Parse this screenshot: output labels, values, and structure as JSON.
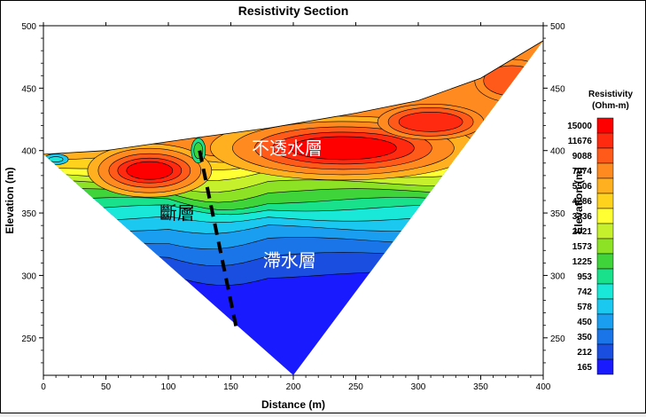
{
  "chart_data": {
    "type": "heatmap",
    "title": "Resistivity Section",
    "xlabel": "Distance (m)",
    "ylabel": "Elevation (m)",
    "ylabel_right": "Elevation (m)",
    "xlim": [
      0,
      400
    ],
    "ylim": [
      220,
      500
    ],
    "x_ticks": [
      0,
      50,
      100,
      150,
      200,
      250,
      300,
      350,
      400
    ],
    "y_ticks": [
      250,
      300,
      350,
      400,
      450,
      500
    ],
    "section_outline": [
      [
        0,
        397
      ],
      [
        50,
        400
      ],
      [
        120,
        410
      ],
      [
        180,
        418
      ],
      [
        250,
        430
      ],
      [
        300,
        440
      ],
      [
        350,
        458
      ],
      [
        400,
        488
      ],
      [
        200,
        220
      ]
    ],
    "colorbar": {
      "title_line1": "Resistivity",
      "title_line2": "(Ohm-m)",
      "levels": [
        "15000",
        "11676",
        "9088",
        "7074",
        "5506",
        "4286",
        "3336",
        "2021",
        "1573",
        "1225",
        "953",
        "742",
        "578",
        "450",
        "350",
        "212",
        "165"
      ],
      "colors": [
        "#ff0000",
        "#ff2a10",
        "#ff5a1a",
        "#ff8a20",
        "#ffb020",
        "#ffd21e",
        "#ffff33",
        "#c6ef2c",
        "#8ee226",
        "#3fd43a",
        "#19e08a",
        "#19e8d8",
        "#1ac8f0",
        "#1a9ef0",
        "#1a76e8",
        "#1a4ee0",
        "#1a1aff"
      ]
    },
    "annotations": [
      {
        "text": "不透水層",
        "x": 195,
        "y": 397
      },
      {
        "text": "斷層",
        "x": 107,
        "y": 345
      },
      {
        "text": "滯水層",
        "x": 197,
        "y": 307
      }
    ],
    "fault_line": [
      [
        125,
        400
      ],
      [
        155,
        255
      ]
    ]
  }
}
